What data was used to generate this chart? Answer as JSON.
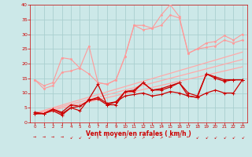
{
  "x": [
    0,
    1,
    2,
    3,
    4,
    5,
    6,
    7,
    8,
    9,
    10,
    11,
    12,
    13,
    14,
    15,
    16,
    17,
    18,
    19,
    20,
    21,
    22,
    23
  ],
  "line_dark1": [
    3.0,
    3.0,
    4.5,
    3.0,
    5.0,
    4.0,
    8.0,
    13.0,
    6.0,
    6.0,
    10.5,
    10.5,
    13.5,
    11.0,
    11.0,
    12.0,
    13.5,
    9.0,
    8.5,
    16.5,
    15.0,
    14.0,
    14.5,
    14.5
  ],
  "line_dark2": [
    3.0,
    3.0,
    4.0,
    2.5,
    5.0,
    5.5,
    7.5,
    8.0,
    6.0,
    7.0,
    9.0,
    9.5,
    10.0,
    9.0,
    9.5,
    10.5,
    10.0,
    9.0,
    8.5,
    10.0,
    11.0,
    10.0,
    10.0,
    14.5
  ],
  "line_dark3": [
    3.5,
    3.0,
    4.5,
    3.5,
    6.0,
    5.5,
    7.5,
    8.5,
    6.5,
    7.0,
    10.5,
    11.0,
    13.5,
    11.0,
    11.5,
    12.5,
    13.5,
    10.0,
    9.0,
    16.5,
    15.5,
    14.5,
    14.5,
    14.5
  ],
  "line_light1": [
    14.5,
    11.5,
    12.5,
    17.0,
    17.5,
    18.5,
    16.5,
    13.5,
    13.0,
    14.5,
    22.5,
    33.0,
    33.0,
    32.0,
    36.5,
    40.0,
    36.0,
    23.5,
    25.0,
    27.0,
    27.5,
    29.5,
    28.0,
    30.0
  ],
  "line_light2": [
    14.5,
    12.5,
    13.5,
    22.0,
    21.5,
    18.5,
    26.0,
    13.5,
    13.0,
    14.5,
    22.5,
    33.0,
    31.5,
    32.0,
    33.0,
    36.5,
    35.5,
    23.5,
    25.0,
    25.5,
    26.0,
    28.0,
    27.0,
    28.0
  ],
  "reg1": [
    3.2,
    4.1,
    5.0,
    5.9,
    6.8,
    7.7,
    8.6,
    9.5,
    10.4,
    11.3,
    12.2,
    13.1,
    14.0,
    14.9,
    15.8,
    16.7,
    17.6,
    18.5,
    19.4,
    20.3,
    21.2,
    22.1,
    23.0,
    23.9
  ],
  "reg2": [
    3.0,
    3.8,
    4.6,
    5.4,
    6.2,
    7.0,
    7.8,
    8.6,
    9.4,
    10.2,
    11.0,
    11.8,
    12.6,
    13.4,
    14.2,
    15.0,
    15.8,
    16.6,
    17.4,
    18.2,
    19.0,
    19.8,
    20.6,
    21.4
  ],
  "reg3": [
    2.8,
    3.5,
    4.2,
    4.9,
    5.6,
    6.3,
    7.0,
    7.7,
    8.4,
    9.1,
    9.8,
    10.5,
    11.2,
    11.9,
    12.6,
    13.3,
    14.0,
    14.7,
    15.4,
    16.1,
    16.8,
    17.5,
    18.2,
    18.9
  ],
  "wind_arrows": [
    "E",
    "E",
    "E",
    "E",
    "SW",
    "SW",
    "SW",
    "N",
    "N",
    "N",
    "NE",
    "NE",
    "NE",
    "NE",
    "NE",
    "W",
    "W",
    "W",
    "SW",
    "SW",
    "SW",
    "SW",
    "SW",
    "SW"
  ],
  "bg_color": "#cce8e8",
  "grid_color": "#aad0d0",
  "line_color_dark": "#cc0000",
  "line_color_light": "#ff9999",
  "reg_color": "#ffaaaa",
  "xlabel": "Vent moyen/en rafales ( km/h )",
  "xlim": [
    -0.5,
    23.5
  ],
  "ylim": [
    0,
    40
  ],
  "yticks": [
    0,
    5,
    10,
    15,
    20,
    25,
    30,
    35,
    40
  ],
  "xticks": [
    0,
    1,
    2,
    3,
    4,
    5,
    6,
    7,
    8,
    9,
    10,
    11,
    12,
    13,
    14,
    15,
    16,
    17,
    18,
    19,
    20,
    21,
    22,
    23
  ]
}
